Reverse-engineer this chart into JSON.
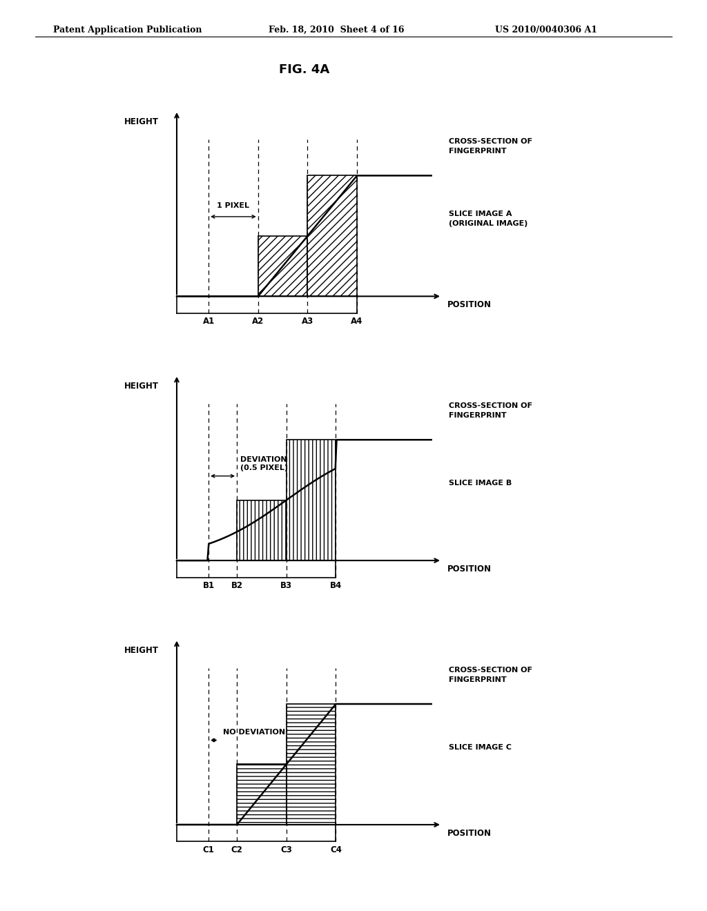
{
  "header_left": "Patent Application Publication",
  "header_center": "Feb. 18, 2010  Sheet 4 of 16",
  "header_right": "US 2010/0040306 A1",
  "fig_title": "FIG. 4A",
  "background": "#ffffff",
  "diagrams": [
    {
      "ylabel": "HEIGHT",
      "xlabel": "POSITION",
      "label1": "CROSS-SECTION OF\nFINGERPRINT",
      "label2": "SLICE IMAGE A\n(ORIGINAL IMAGE)",
      "tick_labels": [
        "A1",
        "A2",
        "A3",
        "A4"
      ],
      "hatch": "///",
      "type": "A"
    },
    {
      "ylabel": "HEIGHT",
      "xlabel": "POSITION",
      "label1": "CROSS-SECTION OF\nFINGERPRINT",
      "label2": "SLICE IMAGE B",
      "tick_labels": [
        "B1",
        "B2",
        "B3",
        "B4"
      ],
      "hatch": "|||",
      "type": "B"
    },
    {
      "ylabel": "HEIGHT",
      "xlabel": "POSITION",
      "label1": "CROSS-SECTION OF\nFINGERPRINT",
      "label2": "SLICE IMAGE C",
      "tick_labels": [
        "C1",
        "C2",
        "C3",
        "C4"
      ],
      "hatch": "---",
      "type": "C"
    }
  ]
}
